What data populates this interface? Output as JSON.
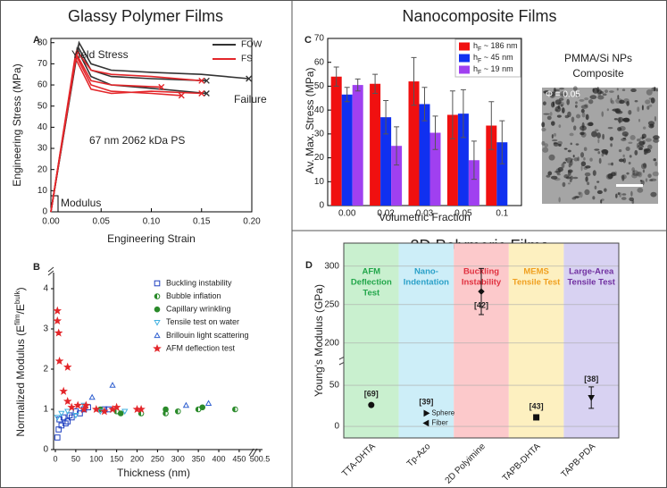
{
  "sections": [
    "Glassy Polymer Films",
    "Nanocomposite Films",
    "2D Polymeric Films"
  ],
  "image": {
    "title": [
      "PMMA/Si NPs",
      "Composite"
    ],
    "label": "Φ = 0.05"
  },
  "chart_data": [
    {
      "type": "line",
      "panel": "A",
      "xlabel": "Engineering Strain",
      "ylabel": "Engineering Stress (MPa)",
      "xlim": [
        0,
        0.2
      ],
      "xticks": [
        {
          "value": 0,
          "label": "0.00"
        },
        {
          "value": 0.05,
          "label": "0.05"
        },
        {
          "value": 0.1,
          "label": "0.10"
        },
        {
          "value": 0.15,
          "label": "0.15"
        },
        {
          "value": 0.2,
          "label": "0.20"
        }
      ],
      "ylim": [
        0,
        82
      ],
      "yticks": [
        0,
        10,
        20,
        30,
        40,
        50,
        60,
        70,
        80
      ],
      "legend": "top-right",
      "annotations": [
        "Yield Stress",
        "Failure",
        "67 nm 2062 kDa PS",
        "Modulus"
      ],
      "series": [
        {
          "name": "FOW",
          "color": "#333333",
          "curves": [
            {
              "x": [
                0,
                0.028,
                0.04,
                0.06,
                0.1,
                0.15,
                0.197
              ],
              "y": [
                0,
                80,
                70,
                67,
                66,
                65,
                63
              ]
            },
            {
              "x": [
                0,
                0.027,
                0.04,
                0.06,
                0.1,
                0.155
              ],
              "y": [
                0,
                78,
                67,
                64,
                63,
                62
              ]
            },
            {
              "x": [
                0,
                0.026,
                0.04,
                0.06,
                0.11,
                0.155
              ],
              "y": [
                0,
                77,
                64,
                60,
                58,
                56
              ]
            }
          ]
        },
        {
          "name": "FS",
          "color": "#e3262a",
          "curves": [
            {
              "x": [
                0,
                0.026,
                0.04,
                0.06,
                0.1,
                0.15
              ],
              "y": [
                0,
                76,
                67,
                65,
                64,
                62
              ]
            },
            {
              "x": [
                0,
                0.025,
                0.04,
                0.06,
                0.11
              ],
              "y": [
                0,
                75,
                62,
                60,
                59
              ]
            },
            {
              "x": [
                0,
                0.025,
                0.04,
                0.06,
                0.1,
                0.13
              ],
              "y": [
                0,
                74,
                60,
                57,
                56,
                55
              ]
            },
            {
              "x": [
                0,
                0.024,
                0.04,
                0.06,
                0.1,
                0.15
              ],
              "y": [
                0,
                73,
                58,
                56,
                57,
                56
              ]
            }
          ]
        }
      ]
    },
    {
      "type": "scatter",
      "panel": "B",
      "xlabel": "Thickness (nm)",
      "ylabel": [
        "Normalized Modulus (E",
        "film",
        "/E",
        "bulk",
        ")"
      ],
      "xlim": [
        0,
        500.5
      ],
      "xticks": [
        0,
        50,
        100,
        150,
        200,
        250,
        300,
        350,
        400,
        450,
        500.5
      ],
      "ylim": [
        0,
        4.4
      ],
      "yticks": [
        0,
        1,
        2,
        3,
        4
      ],
      "legend": "top-right",
      "series": [
        {
          "name": "Buckling instability",
          "color": "#2040c0",
          "marker": "square",
          "x": [
            5,
            8,
            10,
            15,
            20,
            25,
            30,
            35,
            40,
            50,
            60,
            70,
            80,
            120,
            130
          ],
          "y": [
            0.3,
            0.5,
            0.75,
            0.6,
            0.8,
            0.65,
            0.7,
            0.85,
            0.8,
            0.95,
            0.9,
            1.0,
            1.05,
            1.0,
            1.0
          ]
        },
        {
          "name": "Bubble inflation",
          "color": "#2a8a2a",
          "marker": "half",
          "x": [
            150,
            210,
            270,
            300,
            350,
            440
          ],
          "y": [
            0.95,
            0.9,
            0.9,
            0.95,
            1.0,
            1.0
          ]
        },
        {
          "name": "Capillary wrinkling",
          "color": "#2a8a2a",
          "marker": "circle",
          "x": [
            110,
            160,
            270,
            360
          ],
          "y": [
            1.0,
            0.9,
            1.0,
            1.05
          ]
        },
        {
          "name": "Tensile test on water",
          "color": "#40b0e0",
          "marker": "triangle-down",
          "x": [
            5,
            15,
            30,
            50,
            70,
            110,
            170
          ],
          "y": [
            0.8,
            0.9,
            0.95,
            0.85,
            1.1,
            0.95,
            0.95
          ]
        },
        {
          "name": "Brillouin light scattering",
          "color": "#3060d0",
          "marker": "triangle-up",
          "x": [
            90,
            140,
            320,
            375
          ],
          "y": [
            1.3,
            1.6,
            1.1,
            1.15
          ]
        },
        {
          "name": "AFM deflection test",
          "color": "#e3262a",
          "marker": "star",
          "x": [
            5,
            5,
            8,
            10,
            20,
            30,
            30,
            40,
            55,
            70,
            75,
            100,
            120,
            140,
            150,
            200,
            210
          ],
          "y": [
            3.45,
            3.2,
            2.9,
            2.2,
            1.45,
            2.05,
            1.2,
            1.05,
            1.1,
            1.0,
            1.1,
            1.0,
            0.95,
            1.0,
            1.05,
            1.0,
            1.0
          ]
        }
      ]
    },
    {
      "type": "bar",
      "panel": "C",
      "xlabel": "Volumetric Fraction",
      "ylabel": "Av. Max. Stress (MPa)",
      "categories": [
        "0.00",
        "0.02",
        "0.03",
        "0.05",
        "0.1"
      ],
      "ylim": [
        0,
        70
      ],
      "yticks": [
        0,
        10,
        20,
        30,
        40,
        50,
        60,
        70
      ],
      "legend": "top-right",
      "series": [
        {
          "name": [
            "h",
            "F",
            " ~ 186 nm"
          ],
          "color": "#f01010",
          "values": [
            54,
            51,
            52,
            38,
            33.5
          ],
          "errors": [
            4,
            4,
            10,
            10,
            10
          ]
        },
        {
          "name": [
            "h",
            "F",
            " ~ 45 nm"
          ],
          "color": "#1030f0",
          "values": [
            46.5,
            37,
            42.5,
            38.5,
            26.5
          ],
          "errors": [
            3,
            7,
            7,
            10,
            9
          ]
        },
        {
          "name": [
            "h",
            "F",
            " ~ 19 nm"
          ],
          "color": "#a040f0",
          "values": [
            50.5,
            25,
            30.5,
            19,
            null
          ],
          "errors": [
            2.5,
            8,
            7,
            8,
            null
          ]
        }
      ]
    },
    {
      "type": "scatter",
      "panel": "D",
      "ylabel": "Young's Modulus (GPa)",
      "categories": [
        "TTA-DHTA",
        "Tp-Azo",
        "2D Polyimine",
        "TAPB-DHTA",
        "TAPB-PDA"
      ],
      "bands": [
        {
          "label": [
            "AFM",
            "Deflection",
            "Test"
          ],
          "color": "#c9f0cf",
          "text_color": "#22a64a"
        },
        {
          "label": [
            "Nano-",
            "Indentation"
          ],
          "color": "#cdeef8",
          "text_color": "#2aa0c8"
        },
        {
          "label": [
            "Buckling",
            "Instability"
          ],
          "color": "#fcc9cb",
          "text_color": "#e0303f"
        },
        {
          "label": [
            "MEMS",
            "Tensile Test"
          ],
          "color": "#fdf0c0",
          "text_color": "#f0a020"
        },
        {
          "label": [
            "Large-Area",
            "Tensile Test"
          ],
          "color": "#d8d2f2",
          "text_color": "#7030a0"
        }
      ],
      "references": [
        "[69]",
        "[39]",
        "[42]",
        "[43]",
        "[38]"
      ],
      "ylim": [
        -14,
        330
      ],
      "ybreak": [
        75,
        180
      ],
      "yticks": [
        0,
        50,
        200,
        250,
        300
      ],
      "grid": true,
      "series": [
        {
          "color": "#111111",
          "markers": [
            "circle",
            null,
            "diamond",
            "square",
            "triangle-down"
          ],
          "values": [
            26,
            null,
            267,
            11,
            35
          ],
          "errors": [
            null,
            null,
            30,
            2,
            13
          ]
        },
        {
          "name": "Sphere",
          "color": "#111111",
          "marker": "triangle-right",
          "values": [
            null,
            16,
            null,
            null,
            null
          ]
        },
        {
          "name": "Fiber",
          "color": "#111111",
          "marker": "triangle-left",
          "values": [
            null,
            4,
            null,
            null,
            null
          ]
        }
      ]
    }
  ]
}
